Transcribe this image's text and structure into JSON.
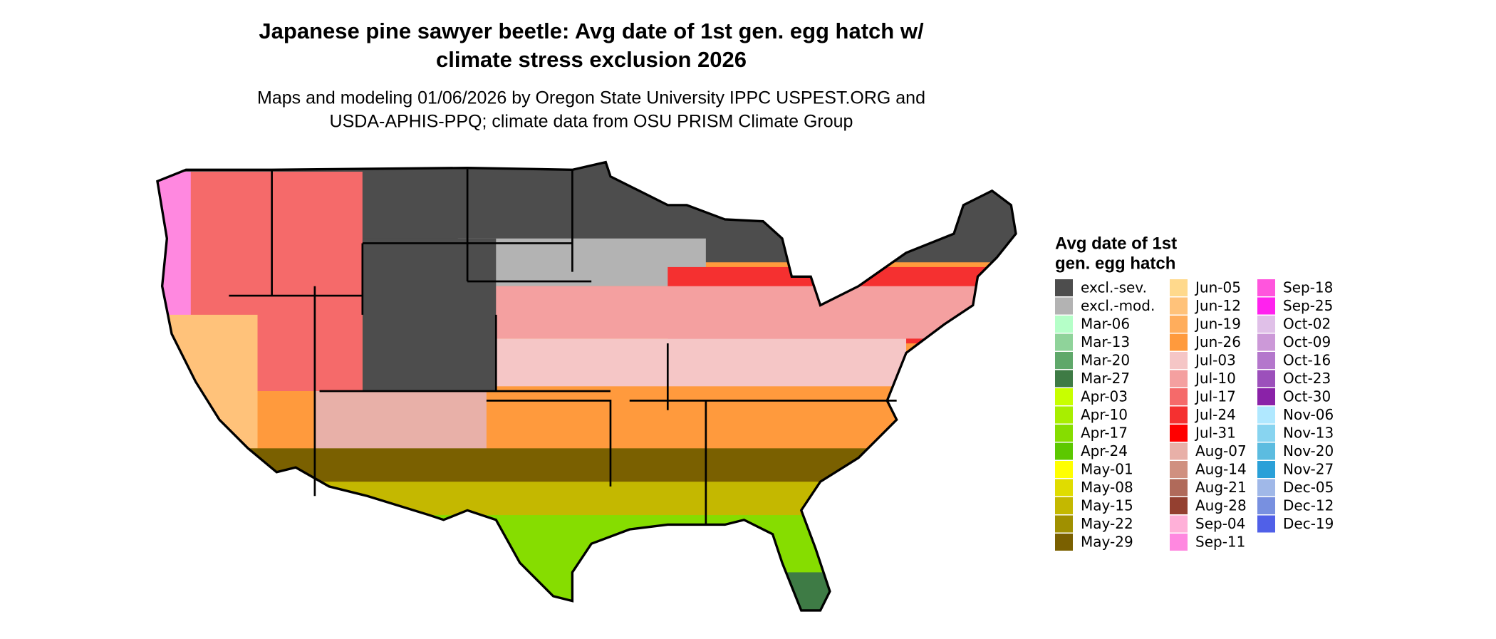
{
  "header": {
    "title_line1": "Japanese pine sawyer beetle: Avg date of 1st gen. egg hatch w/",
    "title_line2": "climate stress exclusion 2026",
    "subtitle_line1": "Maps and modeling 01/06/2026 by Oregon State University IPPC USPEST.ORG and",
    "subtitle_line2": "USDA-APHIS-PPQ; climate data from OSU PRISM Climate Group"
  },
  "legend": {
    "title_line1": "Avg date of 1st",
    "title_line2": "gen. egg hatch",
    "entries": [
      {
        "label": "excl.-sev.",
        "color": "#4d4d4d"
      },
      {
        "label": "excl.-mod.",
        "color": "#b3b3b3"
      },
      {
        "label": "Mar-06",
        "color": "#b5ffc8"
      },
      {
        "label": "Mar-13",
        "color": "#8fd39a"
      },
      {
        "label": "Mar-20",
        "color": "#5fa86a"
      },
      {
        "label": "Mar-27",
        "color": "#3e7b45"
      },
      {
        "label": "Apr-03",
        "color": "#c8ff00"
      },
      {
        "label": "Apr-10",
        "color": "#a8ee00"
      },
      {
        "label": "Apr-17",
        "color": "#86dd00"
      },
      {
        "label": "Apr-24",
        "color": "#5cc800"
      },
      {
        "label": "May-01",
        "color": "#ffff00"
      },
      {
        "label": "May-08",
        "color": "#e0dc00"
      },
      {
        "label": "May-15",
        "color": "#c4b800"
      },
      {
        "label": "May-22",
        "color": "#a09000"
      },
      {
        "label": "May-29",
        "color": "#7a6000"
      },
      {
        "label": "Jun-05",
        "color": "#ffd98c"
      },
      {
        "label": "Jun-12",
        "color": "#ffc27a"
      },
      {
        "label": "Jun-19",
        "color": "#ffad5c"
      },
      {
        "label": "Jun-26",
        "color": "#ff9a3d"
      },
      {
        "label": "Jul-03",
        "color": "#f5c6c6"
      },
      {
        "label": "Jul-10",
        "color": "#f4a0a0"
      },
      {
        "label": "Jul-17",
        "color": "#f56a6a"
      },
      {
        "label": "Jul-24",
        "color": "#f53030"
      },
      {
        "label": "Jul-31",
        "color": "#ff0000"
      },
      {
        "label": "Aug-07",
        "color": "#e8b0a8"
      },
      {
        "label": "Aug-14",
        "color": "#d09080"
      },
      {
        "label": "Aug-21",
        "color": "#b06a5a"
      },
      {
        "label": "Aug-28",
        "color": "#944030"
      },
      {
        "label": "Sep-04",
        "color": "#ffb0d8"
      },
      {
        "label": "Sep-11",
        "color": "#ff88e0"
      },
      {
        "label": "Sep-18",
        "color": "#ff55dd"
      },
      {
        "label": "Sep-25",
        "color": "#ff22ee"
      },
      {
        "label": "Oct-02",
        "color": "#e0c0e8"
      },
      {
        "label": "Oct-09",
        "color": "#cc99d8"
      },
      {
        "label": "Oct-16",
        "color": "#b477cc"
      },
      {
        "label": "Oct-23",
        "color": "#9c50bb"
      },
      {
        "label": "Oct-30",
        "color": "#8a22a8"
      },
      {
        "label": "Nov-06",
        "color": "#b0e8ff"
      },
      {
        "label": "Nov-13",
        "color": "#88d4f0"
      },
      {
        "label": "Nov-20",
        "color": "#5cbce0"
      },
      {
        "label": "Nov-27",
        "color": "#2aa0d8"
      },
      {
        "label": "Dec-05",
        "color": "#a0b8e8"
      },
      {
        "label": "Dec-12",
        "color": "#7890e0"
      },
      {
        "label": "Dec-19",
        "color": "#5060e8"
      }
    ]
  }
}
